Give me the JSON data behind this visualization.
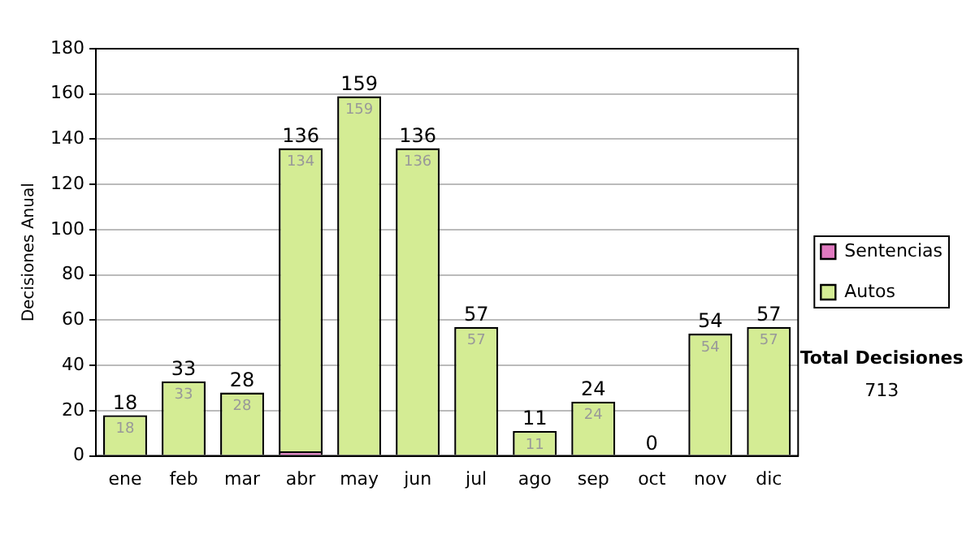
{
  "chart_data": {
    "type": "bar",
    "stacked": true,
    "ylabel": "Decisiones Anual",
    "categories": [
      "ene",
      "feb",
      "mar",
      "abr",
      "may",
      "jun",
      "jul",
      "ago",
      "sep",
      "oct",
      "nov",
      "dic"
    ],
    "series": [
      {
        "name": "Sentencias",
        "color": "#e07ac0",
        "values": [
          0,
          0,
          0,
          2,
          0,
          0,
          0,
          0,
          0,
          0,
          0,
          0
        ]
      },
      {
        "name": "Autos",
        "color": "#d4ec94",
        "values": [
          18,
          33,
          28,
          134,
          159,
          136,
          57,
          11,
          24,
          0,
          54,
          57
        ],
        "value_labels": [
          "18",
          "33",
          "28",
          "134",
          "159",
          "136",
          "57",
          "11",
          "24",
          null,
          "54",
          "57"
        ]
      }
    ],
    "totals": [
      "18",
      "33",
      "28",
      "136",
      "159",
      "136",
      "57",
      "11",
      "24",
      "0",
      "54",
      "57"
    ],
    "ylim": [
      0,
      180
    ],
    "yticks": [
      0,
      20,
      40,
      60,
      80,
      100,
      120,
      140,
      160,
      180
    ],
    "grid": "y",
    "legend": "right",
    "annotations": [
      "Total Decisiones",
      "713"
    ]
  }
}
